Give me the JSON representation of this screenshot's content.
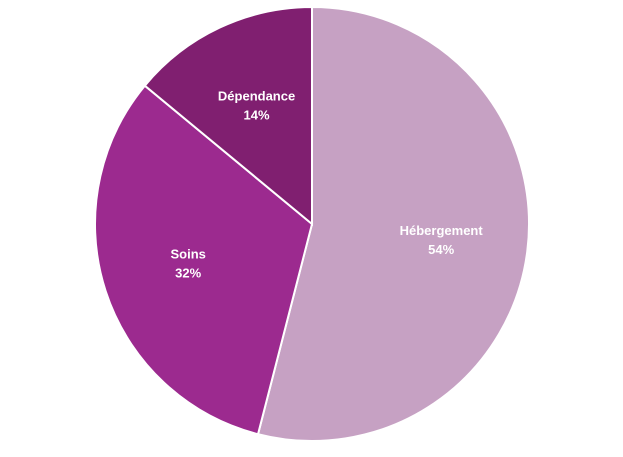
{
  "chart_data": {
    "type": "pie",
    "categories": [
      "Hébergement",
      "Soins",
      "Dépendance"
    ],
    "values": [
      54,
      32,
      14
    ],
    "value_labels": [
      "54%",
      "32%",
      "14%"
    ],
    "colors": [
      "#c6a1c3",
      "#9c2a8f",
      "#801f70"
    ]
  }
}
